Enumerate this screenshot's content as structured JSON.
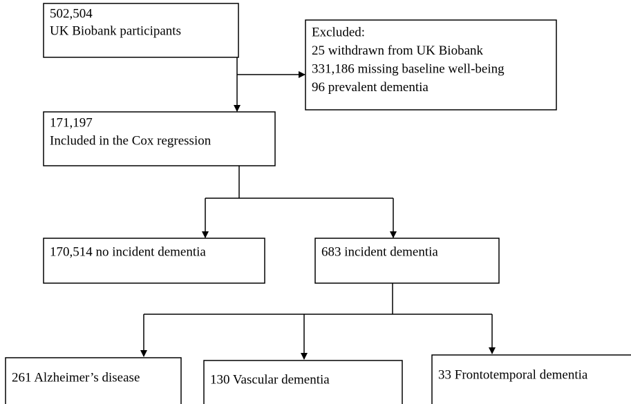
{
  "nodes": [
    {
      "lines": [
        "502,504",
        "UK Biobank participants"
      ]
    },
    {
      "lines": [
        "Excluded:",
        "25 withdrawn from UK Biobank",
        "331,186 missing baseline well-being",
        "96 prevalent dementia"
      ]
    },
    {
      "lines": [
        "171,197",
        "Included in the Cox regression"
      ]
    },
    {
      "lines": [
        "170,514 no incident dementia"
      ]
    },
    {
      "lines": [
        "683 incident dementia"
      ]
    },
    {
      "lines": [
        "261 Alzheimer’s disease"
      ]
    },
    {
      "lines": [
        "130 Vascular dementia"
      ]
    },
    {
      "lines": [
        "33 Frontotemporal dementia"
      ]
    }
  ]
}
